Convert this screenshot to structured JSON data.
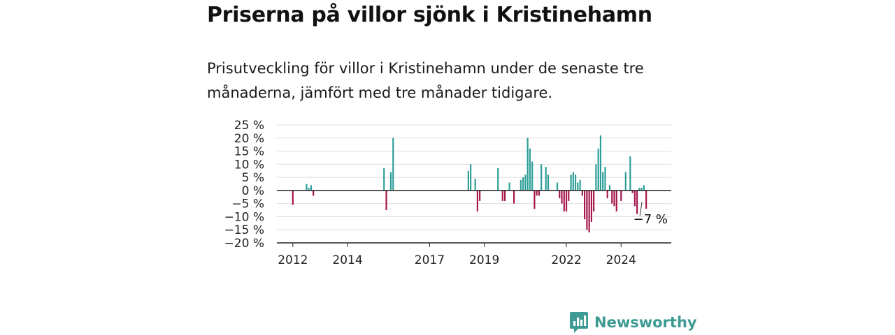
{
  "title": "Priserna på villor sjönk i Kristinehamn",
  "subtitle": "Prisutveckling för villor i Kristinehamn under de senaste tre månaderna, jämfört med tre månader tidigare.",
  "brand": {
    "name": "Newsworthy",
    "icon": "bar-chart-speech-bubble-icon"
  },
  "colors": {
    "positive": "#2a9d96",
    "negative": "#a5134a",
    "grid": "#dddddd",
    "axis": "#222222",
    "brand": "#3e9b93"
  },
  "chart_data": {
    "type": "bar",
    "title": "",
    "xlabel": "",
    "ylabel": "",
    "ylim": [
      -20,
      25
    ],
    "yticks": [
      {
        "value": 25,
        "label": "25 %"
      },
      {
        "value": 20,
        "label": "20 %"
      },
      {
        "value": 15,
        "label": "15 %"
      },
      {
        "value": 10,
        "label": "10 %"
      },
      {
        "value": 5,
        "label": "5 %"
      },
      {
        "value": 0,
        "label": "0 %"
      },
      {
        "value": -5,
        "label": "−5 %"
      },
      {
        "value": -10,
        "label": "−10 %"
      },
      {
        "value": -15,
        "label": "−15 %"
      },
      {
        "value": -20,
        "label": "−20 %"
      }
    ],
    "xticks": [
      {
        "year": 2012,
        "label": "2012"
      },
      {
        "year": 2014,
        "label": "2014"
      },
      {
        "year": 2017,
        "label": "2017"
      },
      {
        "year": 2019,
        "label": "2019"
      },
      {
        "year": 2022,
        "label": "2022"
      },
      {
        "year": 2024,
        "label": "2024"
      }
    ],
    "x_range": [
      "2011-06",
      "2025-11"
    ],
    "grid": true,
    "annotation": {
      "date": "2024-12",
      "value": -7,
      "label": "−7 %"
    },
    "bars": [
      {
        "date": "2012-01",
        "value": -5.5
      },
      {
        "date": "2012-07",
        "value": 2.5
      },
      {
        "date": "2012-08",
        "value": 1
      },
      {
        "date": "2012-09",
        "value": 2
      },
      {
        "date": "2012-10",
        "value": -2
      },
      {
        "date": "2015-05",
        "value": 8.5
      },
      {
        "date": "2015-06",
        "value": -7.5
      },
      {
        "date": "2015-08",
        "value": 7
      },
      {
        "date": "2015-09",
        "value": 20
      },
      {
        "date": "2018-06",
        "value": 7.5
      },
      {
        "date": "2018-07",
        "value": 10
      },
      {
        "date": "2018-09",
        "value": 4.5
      },
      {
        "date": "2018-10",
        "value": -8
      },
      {
        "date": "2018-11",
        "value": -4
      },
      {
        "date": "2019-07",
        "value": 8.5
      },
      {
        "date": "2019-09",
        "value": -4
      },
      {
        "date": "2019-10",
        "value": -4
      },
      {
        "date": "2019-12",
        "value": 3
      },
      {
        "date": "2020-02",
        "value": -5
      },
      {
        "date": "2020-05",
        "value": 4
      },
      {
        "date": "2020-06",
        "value": 5
      },
      {
        "date": "2020-07",
        "value": 6
      },
      {
        "date": "2020-08",
        "value": 20
      },
      {
        "date": "2020-09",
        "value": 16
      },
      {
        "date": "2020-10",
        "value": 11
      },
      {
        "date": "2020-11",
        "value": -7
      },
      {
        "date": "2020-12",
        "value": -2
      },
      {
        "date": "2021-01",
        "value": -2
      },
      {
        "date": "2021-02",
        "value": 10
      },
      {
        "date": "2021-04",
        "value": 9
      },
      {
        "date": "2021-05",
        "value": 6
      },
      {
        "date": "2021-09",
        "value": 3
      },
      {
        "date": "2021-10",
        "value": -3
      },
      {
        "date": "2021-11",
        "value": -5
      },
      {
        "date": "2021-12",
        "value": -8
      },
      {
        "date": "2022-01",
        "value": -8
      },
      {
        "date": "2022-02",
        "value": -4
      },
      {
        "date": "2022-03",
        "value": 6
      },
      {
        "date": "2022-04",
        "value": 7
      },
      {
        "date": "2022-05",
        "value": 6
      },
      {
        "date": "2022-06",
        "value": 3
      },
      {
        "date": "2022-07",
        "value": 4
      },
      {
        "date": "2022-08",
        "value": -2
      },
      {
        "date": "2022-09",
        "value": -11
      },
      {
        "date": "2022-10",
        "value": -15
      },
      {
        "date": "2022-11",
        "value": -16
      },
      {
        "date": "2022-12",
        "value": -12
      },
      {
        "date": "2023-01",
        "value": -8
      },
      {
        "date": "2023-02",
        "value": 10
      },
      {
        "date": "2023-03",
        "value": 16
      },
      {
        "date": "2023-04",
        "value": 21
      },
      {
        "date": "2023-05",
        "value": 7
      },
      {
        "date": "2023-06",
        "value": 9
      },
      {
        "date": "2023-07",
        "value": -3
      },
      {
        "date": "2023-08",
        "value": 2
      },
      {
        "date": "2023-09",
        "value": -5
      },
      {
        "date": "2023-10",
        "value": -6
      },
      {
        "date": "2023-11",
        "value": -8
      },
      {
        "date": "2024-01",
        "value": -4
      },
      {
        "date": "2024-03",
        "value": 7
      },
      {
        "date": "2024-05",
        "value": 13
      },
      {
        "date": "2024-06",
        "value": -1
      },
      {
        "date": "2024-07",
        "value": -6
      },
      {
        "date": "2024-08",
        "value": -9
      },
      {
        "date": "2024-09",
        "value": 1
      },
      {
        "date": "2024-10",
        "value": 1
      },
      {
        "date": "2024-11",
        "value": 2
      },
      {
        "date": "2024-12",
        "value": -7
      }
    ]
  }
}
